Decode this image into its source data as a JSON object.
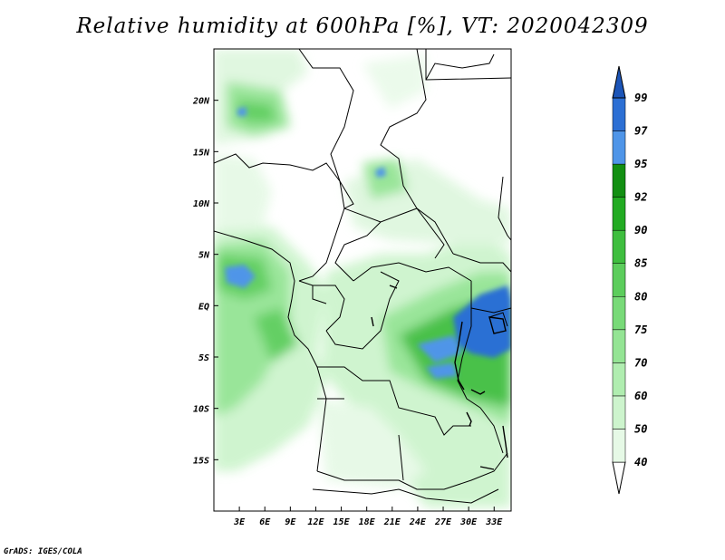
{
  "title": "Relative humidity at 600hPa [%], VT: 2020042309",
  "footer": "GrADS: IGES/COLA",
  "map": {
    "variable": "Relative humidity",
    "level": "600hPa",
    "units": "%",
    "valid_time": "2020042309",
    "lon_range": [
      0,
      35
    ],
    "lat_range": [
      -20,
      25
    ],
    "lon_ticks": [
      "3E",
      "6E",
      "9E",
      "12E",
      "15E",
      "18E",
      "21E",
      "24E",
      "27E",
      "30E",
      "33E"
    ],
    "lat_ticks": [
      "20N",
      "15N",
      "10N",
      "5N",
      "EQ",
      "5S",
      "10S",
      "15S"
    ]
  },
  "colorbar": {
    "levels": [
      "40",
      "50",
      "60",
      "70",
      "75",
      "80",
      "85",
      "90",
      "92",
      "95",
      "97",
      "99"
    ],
    "colors": [
      "#ffffff",
      "#e6f9e6",
      "#cdf4cd",
      "#b0edb0",
      "#94e494",
      "#78da78",
      "#5ccd5c",
      "#3fbe3f",
      "#22ab22",
      "#128f12",
      "#4f95e8",
      "#2c6fd4",
      "#1c55b8"
    ]
  }
}
